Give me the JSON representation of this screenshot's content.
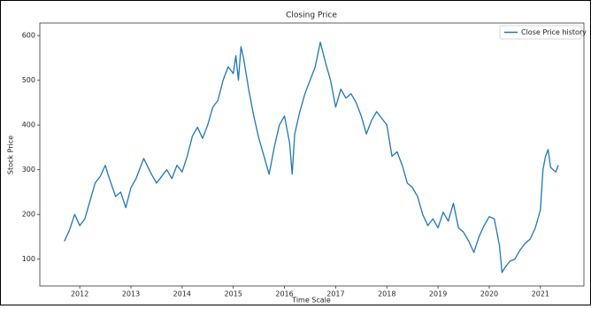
{
  "chart_data": {
    "type": "line",
    "title": "Closing Price",
    "x_label": "Time Scale",
    "y_label": "Stock Price",
    "legend": "upper right",
    "xlim": [
      2011.22,
      2021.85
    ],
    "xticks": [
      2012,
      2013,
      2014,
      2015,
      2016,
      2017,
      2018,
      2019,
      2020,
      2021
    ],
    "ylim": [
      40,
      628
    ],
    "yticks": [
      100,
      200,
      300,
      400,
      500,
      600
    ],
    "x": [
      2011.7,
      2011.8,
      2011.9,
      2012.0,
      2012.1,
      2012.2,
      2012.3,
      2012.4,
      2012.5,
      2012.55,
      2012.7,
      2012.8,
      2012.9,
      2013.0,
      2013.1,
      2013.2,
      2013.25,
      2013.4,
      2013.5,
      2013.7,
      2013.8,
      2013.9,
      2014.0,
      2014.1,
      2014.2,
      2014.3,
      2014.4,
      2014.5,
      2014.6,
      2014.7,
      2014.8,
      2014.9,
      2015.0,
      2015.05,
      2015.1,
      2015.15,
      2015.2,
      2015.3,
      2015.4,
      2015.5,
      2015.6,
      2015.7,
      2015.8,
      2015.9,
      2016.0,
      2016.1,
      2016.15,
      2016.2,
      2016.3,
      2016.4,
      2016.5,
      2016.6,
      2016.7,
      2016.8,
      2016.9,
      2017.0,
      2017.1,
      2017.2,
      2017.3,
      2017.4,
      2017.5,
      2017.6,
      2017.7,
      2017.8,
      2017.9,
      2018.0,
      2018.1,
      2018.2,
      2018.3,
      2018.4,
      2018.5,
      2018.6,
      2018.7,
      2018.8,
      2018.9,
      2019.0,
      2019.1,
      2019.2,
      2019.3,
      2019.4,
      2019.5,
      2019.6,
      2019.7,
      2019.8,
      2019.9,
      2020.0,
      2020.1,
      2020.2,
      2020.25,
      2020.3,
      2020.4,
      2020.5,
      2020.6,
      2020.7,
      2020.8,
      2020.9,
      2021.0,
      2021.05,
      2021.1,
      2021.15,
      2021.2,
      2021.3,
      2021.35
    ],
    "series": [
      {
        "name": "Close Price history",
        "color": "#1f77b4",
        "values": [
          140,
          165,
          200,
          175,
          190,
          230,
          270,
          285,
          310,
          290,
          240,
          250,
          215,
          260,
          280,
          310,
          325,
          290,
          270,
          300,
          280,
          310,
          295,
          330,
          375,
          395,
          370,
          400,
          440,
          455,
          500,
          530,
          515,
          555,
          500,
          575,
          550,
          480,
          420,
          370,
          330,
          290,
          350,
          400,
          420,
          360,
          290,
          380,
          430,
          470,
          500,
          530,
          585,
          540,
          500,
          440,
          480,
          460,
          470,
          450,
          420,
          380,
          410,
          430,
          415,
          400,
          330,
          340,
          310,
          270,
          260,
          240,
          200,
          175,
          190,
          170,
          205,
          185,
          225,
          170,
          160,
          140,
          115,
          150,
          175,
          195,
          190,
          130,
          70,
          80,
          95,
          100,
          120,
          135,
          145,
          170,
          210,
          300,
          330,
          345,
          305,
          295,
          310
        ]
      }
    ]
  }
}
